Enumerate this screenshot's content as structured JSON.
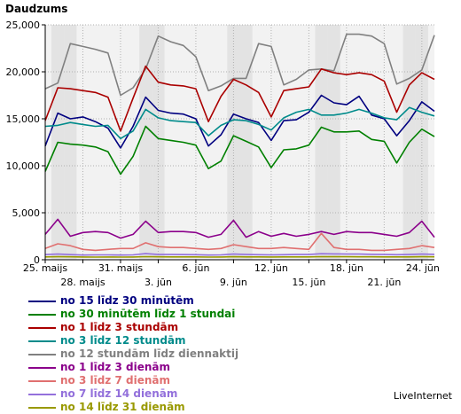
{
  "brand": "LiveInternet",
  "chart_data": {
    "type": "line",
    "title": "Daudzums",
    "ylim": [
      0,
      25000
    ],
    "y_ticks": [
      0,
      5000,
      10000,
      15000,
      20000,
      25000
    ],
    "y_tick_labels": [
      "0",
      "5,000",
      "10,000",
      "15,000",
      "20,000",
      "25,000"
    ],
    "x_tick_labels": [
      {
        "index": 0,
        "label": "25. maijs",
        "row": 1
      },
      {
        "index": 3,
        "label": "28. maijs",
        "row": 2
      },
      {
        "index": 6,
        "label": "31. maijs",
        "row": 1
      },
      {
        "index": 9,
        "label": "3. jūn",
        "row": 2
      },
      {
        "index": 12,
        "label": "6. jūn",
        "row": 1
      },
      {
        "index": 15,
        "label": "9. jūn",
        "row": 2
      },
      {
        "index": 18,
        "label": "12. jūn",
        "row": 1
      },
      {
        "index": 21,
        "label": "15. jūn",
        "row": 2
      },
      {
        "index": 24,
        "label": "18. jūn",
        "row": 1
      },
      {
        "index": 27,
        "label": "21. jūn",
        "row": 2
      },
      {
        "index": 30,
        "label": "24. jūn",
        "row": 1
      }
    ],
    "weekend_bands": [
      1,
      2,
      8,
      9,
      15,
      16,
      22,
      23,
      29,
      30
    ],
    "grid": true,
    "legend_position": "bottom",
    "series": [
      {
        "name": "no 12 stundām līdz diennaktij",
        "color": "#808080",
        "values": [
          18200,
          18800,
          23000,
          22700,
          22400,
          22000,
          17500,
          18300,
          20300,
          23800,
          23200,
          22800,
          21600,
          18000,
          18500,
          19300,
          19300,
          23000,
          22700,
          18600,
          19200,
          20200,
          20300,
          20100,
          24000,
          24000,
          23800,
          23000,
          18700,
          19300,
          20200,
          23900
        ]
      },
      {
        "name": "no 1 līdz 3 stundām",
        "color": "#aa0000",
        "values": [
          14800,
          18300,
          18200,
          18000,
          17800,
          17300,
          13700,
          17200,
          20600,
          18900,
          18600,
          18500,
          18200,
          14700,
          17400,
          19200,
          18600,
          17800,
          15200,
          18000,
          18200,
          18400,
          20300,
          19900,
          19700,
          19900,
          19700,
          19000,
          15700,
          18600,
          19900,
          19200
        ]
      },
      {
        "name": "no 15 līdz 30 minūtēm",
        "color": "#000080",
        "values": [
          12100,
          15600,
          15000,
          15200,
          14700,
          14000,
          11900,
          14200,
          17300,
          15900,
          15600,
          15500,
          15000,
          12100,
          13300,
          15500,
          15000,
          14600,
          12700,
          14800,
          14900,
          15700,
          17500,
          16700,
          16500,
          17400,
          15400,
          15000,
          13200,
          14800,
          16800,
          15800
        ]
      },
      {
        "name": "no 3 līdz 12 stundām",
        "color": "#008b8b",
        "values": [
          14200,
          14300,
          14600,
          14400,
          14200,
          14300,
          12900,
          13700,
          16000,
          15100,
          14800,
          14700,
          14600,
          13200,
          14300,
          14900,
          14800,
          14400,
          13800,
          15100,
          15700,
          16000,
          15400,
          15400,
          15600,
          16000,
          15600,
          15100,
          14900,
          16200,
          15700,
          15300
        ]
      },
      {
        "name": "no 30 minūtēm līdz 1 stundai",
        "color": "#008000",
        "values": [
          9400,
          12500,
          12300,
          12200,
          12000,
          11500,
          9100,
          11000,
          14200,
          12900,
          12700,
          12500,
          12200,
          9700,
          10500,
          13200,
          12600,
          12000,
          9800,
          11700,
          11800,
          12200,
          14100,
          13600,
          13600,
          13700,
          12800,
          12600,
          10300,
          12500,
          13900,
          13100
        ]
      },
      {
        "name": "no 1 līdz 3 dienām",
        "color": "#8b008b",
        "values": [
          2700,
          4300,
          2500,
          2900,
          3000,
          2900,
          2300,
          2700,
          4100,
          2900,
          3000,
          3000,
          2900,
          2400,
          2700,
          4200,
          2400,
          3000,
          2500,
          2800,
          2500,
          2700,
          3000,
          2700,
          3000,
          2900,
          2900,
          2700,
          2500,
          2900,
          4100,
          2400
        ]
      },
      {
        "name": "no 3 līdz 7 dienām",
        "color": "#e07070",
        "values": [
          1200,
          1700,
          1500,
          1100,
          1000,
          1100,
          1200,
          1200,
          1800,
          1400,
          1300,
          1300,
          1200,
          1100,
          1200,
          1600,
          1400,
          1200,
          1200,
          1300,
          1200,
          1100,
          2800,
          1300,
          1100,
          1100,
          1000,
          1000,
          1100,
          1200,
          1500,
          1300
        ]
      },
      {
        "name": "no 7 līdz 14 dienām",
        "color": "#9370db",
        "values": [
          550,
          600,
          550,
          500,
          520,
          520,
          500,
          520,
          650,
          560,
          560,
          550,
          540,
          500,
          520,
          600,
          560,
          540,
          520,
          540,
          560,
          560,
          640,
          620,
          600,
          600,
          580,
          560,
          540,
          560,
          600,
          580
        ]
      },
      {
        "name": "no 14 līdz 31 dienām",
        "color": "#999900",
        "values": [
          300,
          320,
          310,
          290,
          280,
          290,
          280,
          290,
          330,
          310,
          300,
          300,
          300,
          280,
          290,
          320,
          300,
          300,
          290,
          300,
          300,
          300,
          330,
          320,
          320,
          310,
          310,
          300,
          300,
          300,
          320,
          310
        ]
      }
    ]
  },
  "legend": [
    {
      "label": "no 15 līdz 30 minūtēm",
      "color": "#000080"
    },
    {
      "label": "no 30 minūtēm līdz 1 stundai",
      "color": "#008000"
    },
    {
      "label": "no 1 līdz 3 stundām",
      "color": "#aa0000"
    },
    {
      "label": "no 3 līdz 12 stundām",
      "color": "#008b8b"
    },
    {
      "label": "no 12 stundām līdz diennaktij",
      "color": "#808080"
    },
    {
      "label": "no 1 līdz 3 dienām",
      "color": "#8b008b"
    },
    {
      "label": "no 3 līdz 7 dienām",
      "color": "#e07070"
    },
    {
      "label": "no 7 līdz 14 dienām",
      "color": "#9370db"
    },
    {
      "label": "no 14 līdz 31 dienām",
      "color": "#999900"
    }
  ]
}
